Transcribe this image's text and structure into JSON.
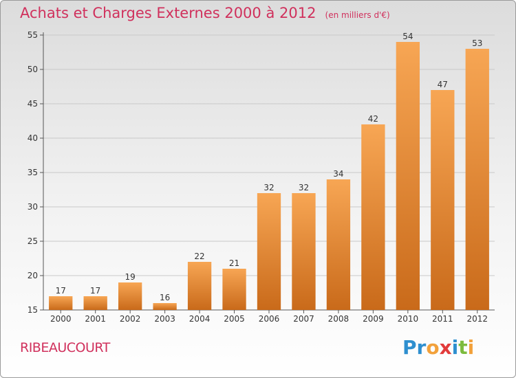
{
  "title": "Achats et Charges Externes 2000 à 2012",
  "unit": "(en milliers d'€)",
  "location": "RIBEAUCOURT",
  "logo": {
    "text": "Proxiti",
    "letters": [
      {
        "ch": "P",
        "color": "#2e8fcf"
      },
      {
        "ch": "r",
        "color": "#2e8fcf"
      },
      {
        "ch": "o",
        "color": "#f2a13b"
      },
      {
        "ch": "x",
        "color": "#e23b3b"
      },
      {
        "ch": "i",
        "color": "#2e8fcf"
      },
      {
        "ch": "t",
        "color": "#7cbb3e"
      },
      {
        "ch": "i",
        "color": "#f2a13b"
      }
    ]
  },
  "colors": {
    "bar_top": "#f7a654",
    "bar_bottom": "#c96a1a",
    "title": "#d0305c",
    "axis": "#555555",
    "grid": "#c8c8c8"
  },
  "chart_data": {
    "type": "bar",
    "categories": [
      "2000",
      "2001",
      "2002",
      "2003",
      "2004",
      "2005",
      "2006",
      "2007",
      "2008",
      "2009",
      "2010",
      "2011",
      "2012"
    ],
    "values": [
      17,
      17,
      19,
      16,
      22,
      21,
      32,
      32,
      34,
      42,
      54,
      47,
      53
    ],
    "ylim": [
      15,
      55
    ],
    "yticks": [
      15,
      20,
      25,
      30,
      35,
      40,
      45,
      50,
      55
    ],
    "grid": true
  }
}
